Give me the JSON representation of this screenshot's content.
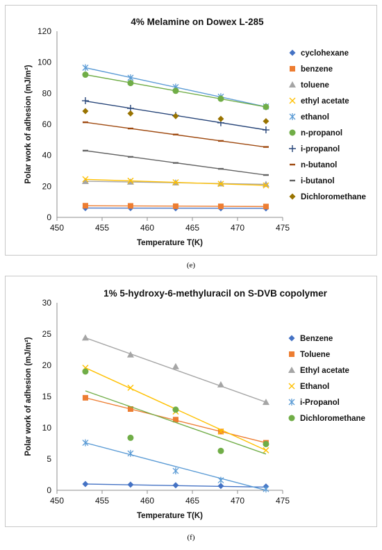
{
  "colors": {
    "blue": "#4472C4",
    "orange": "#ED7D31",
    "gray": "#A5A5A5",
    "yellow": "#FFC000",
    "lightblue": "#5B9BD5",
    "green": "#70AD47",
    "navy": "#264478",
    "rust": "#9E480E",
    "darkgray": "#636363",
    "olive": "#997300"
  },
  "chart_data": [
    {
      "id": "e",
      "type": "scatter",
      "caption": "(e)",
      "title": "4% Melamine on Dowex L-285",
      "xlabel": "Temperature T(K)",
      "ylabel": "Polar work of adhesion (mJ/m²)",
      "xlim": [
        450,
        475
      ],
      "ylim": [
        0,
        120
      ],
      "xticks": [
        450,
        455,
        460,
        465,
        470,
        475
      ],
      "yticks": [
        0,
        20,
        40,
        60,
        80,
        100,
        120
      ],
      "x": [
        453.15,
        458.15,
        463.15,
        468.15,
        473.15
      ],
      "legend_position": "right",
      "series": [
        {
          "name": "cyclohexane",
          "color": "#4472C4",
          "marker": "diamond",
          "values": [
            6.0,
            6.0,
            5.9,
            5.9,
            5.8
          ],
          "trend": [
            6.0,
            5.8
          ]
        },
        {
          "name": "benzene",
          "color": "#ED7D31",
          "marker": "square",
          "values": [
            7.5,
            7.4,
            7.2,
            7.1,
            7.0
          ],
          "trend": [
            7.5,
            7.0
          ]
        },
        {
          "name": "toluene",
          "color": "#A5A5A5",
          "marker": "triangle",
          "values": [
            23.3,
            22.9,
            22.4,
            21.8,
            21.4
          ],
          "trend": [
            23.3,
            21.3
          ]
        },
        {
          "name": "ethyl acetate",
          "color": "#FFC000",
          "marker": "x",
          "values": [
            24.6,
            23.6,
            22.6,
            21.6,
            20.6
          ],
          "trend": [
            24.5,
            20.6
          ]
        },
        {
          "name": "ethanol",
          "color": "#5B9BD5",
          "marker": "asterisk",
          "values": [
            96.5,
            90.0,
            84.0,
            77.8,
            71.5
          ],
          "trend": [
            96.5,
            71.3
          ]
        },
        {
          "name": "n-propanol",
          "color": "#70AD47",
          "marker": "circle",
          "values": [
            92.0,
            86.6,
            81.6,
            76.5,
            71.2
          ],
          "trend": [
            92.0,
            71.2
          ]
        },
        {
          "name": "i-propanol",
          "color": "#264478",
          "marker": "plus",
          "values": [
            75.2,
            70.3,
            65.7,
            61.0,
            56.4
          ],
          "trend": [
            75.0,
            56.4
          ]
        },
        {
          "name": "n-butanol",
          "color": "#9E480E",
          "marker": "dash",
          "values": [
            61.3,
            57.3,
            53.4,
            49.3,
            45.4
          ],
          "trend": [
            61.3,
            45.3
          ]
        },
        {
          "name": "i-butanol",
          "color": "#636363",
          "marker": "dash",
          "values": [
            43.0,
            39.0,
            35.1,
            31.3,
            27.3
          ],
          "trend": [
            43.0,
            27.3
          ]
        },
        {
          "name": "Dichloromethane",
          "color": "#997300",
          "marker": "diamond",
          "values": [
            68.5,
            67.0,
            65.3,
            63.5,
            62.0
          ],
          "trend": null
        }
      ]
    },
    {
      "id": "f",
      "type": "scatter",
      "caption": "(f)",
      "title": "1% 5-hydroxy-6-methyluracil on S-DVB copolymer",
      "xlabel": "Temperature T(K)",
      "ylabel": "Polar work of adhesion (mJ/m²)",
      "xlim": [
        450,
        475
      ],
      "ylim": [
        0,
        30
      ],
      "xticks": [
        450,
        455,
        460,
        465,
        470,
        475
      ],
      "yticks": [
        0,
        5,
        10,
        15,
        20,
        25,
        30
      ],
      "x": [
        453.15,
        458.15,
        463.15,
        468.15,
        473.15
      ],
      "legend_position": "right",
      "series": [
        {
          "name": "Benzene",
          "color": "#4472C4",
          "marker": "diamond",
          "values": [
            1.0,
            0.9,
            0.8,
            0.7,
            0.6
          ],
          "trend": [
            1.0,
            0.5
          ]
        },
        {
          "name": "Toluene",
          "color": "#ED7D31",
          "marker": "square",
          "values": [
            14.8,
            13.0,
            11.3,
            9.4,
            7.6
          ],
          "trend": [
            14.8,
            7.6
          ]
        },
        {
          "name": "Ethyl acetate",
          "color": "#A5A5A5",
          "marker": "triangle",
          "values": [
            24.4,
            21.7,
            19.8,
            16.9,
            14.1
          ],
          "trend": [
            24.4,
            14.1
          ]
        },
        {
          "name": "Ethanol",
          "color": "#FFC000",
          "marker": "x",
          "values": [
            19.6,
            16.4,
            12.6,
            9.4,
            6.4
          ],
          "trend": [
            19.6,
            6.4
          ]
        },
        {
          "name": "i-Propanol",
          "color": "#5B9BD5",
          "marker": "asterisk",
          "values": [
            7.6,
            5.9,
            3.1,
            1.6,
            0.2
          ],
          "trend": [
            7.6,
            0.0
          ]
        },
        {
          "name": "Dichloromethane",
          "color": "#70AD47",
          "marker": "circle",
          "values": [
            19.0,
            8.4,
            12.9,
            6.3,
            7.4
          ],
          "trend": [
            15.9,
            5.8
          ]
        }
      ]
    }
  ]
}
